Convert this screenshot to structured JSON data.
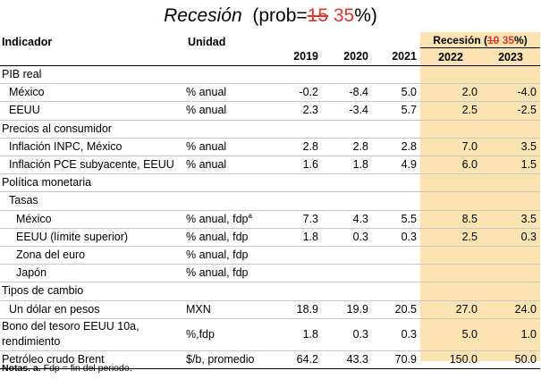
{
  "title": {
    "word": "Recesión",
    "prob_prefix": "(prob=",
    "old_value": "15",
    "new_value": "35",
    "suffix": "%)"
  },
  "header": {
    "indicador": "Indicador",
    "unidad": "Unidad",
    "scenario_prefix": "Recesión (",
    "scenario_old": "10",
    "scenario_new": "35",
    "scenario_suffix": "%)",
    "years": [
      "2019",
      "2020",
      "2021",
      "2022",
      "2023"
    ]
  },
  "rows": [
    {
      "label": "PIB real",
      "unit": "",
      "indent": 0,
      "values": [
        "",
        "",
        "",
        "",
        ""
      ]
    },
    {
      "label": "México",
      "unit": "% anual",
      "indent": 1,
      "values": [
        "-0.2",
        "-8.4",
        "5.0",
        "2.0",
        "-4.0"
      ]
    },
    {
      "label": "EEUU",
      "unit": "% anual",
      "indent": 1,
      "values": [
        "2.3",
        "-3.4",
        "5.7",
        "2.5",
        "-2.5"
      ]
    },
    {
      "label": "Precios al consumidor",
      "unit": "",
      "indent": 0,
      "values": [
        "",
        "",
        "",
        "",
        ""
      ]
    },
    {
      "label": "Inflación INPC, México",
      "unit": "% anual",
      "indent": 1,
      "values": [
        "2.8",
        "2.8",
        "2.8",
        "7.0",
        "3.5"
      ]
    },
    {
      "label": "Inflación PCE subyacente, EEUU",
      "unit": "% anual",
      "indent": 1,
      "values": [
        "1.6",
        "1.8",
        "4.9",
        "6.0",
        "1.5"
      ]
    },
    {
      "label": "Política monetaria",
      "unit": "",
      "indent": 0,
      "values": [
        "",
        "",
        "",
        "",
        ""
      ]
    },
    {
      "label": "Tasas",
      "unit": "",
      "indent": 1,
      "values": [
        "",
        "",
        "",
        "",
        ""
      ]
    },
    {
      "label": "México",
      "unit": "% anual, fdp",
      "unit_sup": "a",
      "indent": 2,
      "values": [
        "7.3",
        "4.3",
        "5.5",
        "8.5",
        "3.5"
      ]
    },
    {
      "label": "EEUU (límite superior)",
      "unit": "% anual, fdp",
      "indent": 2,
      "values": [
        "1.8",
        "0.3",
        "0.3",
        "2.5",
        "0.3"
      ]
    },
    {
      "label": "Zona del euro",
      "unit": "% anual, fdp",
      "indent": 2,
      "values": [
        "",
        "",
        "",
        "",
        ""
      ]
    },
    {
      "label": "Japón",
      "unit": "% anual, fdp",
      "indent": 2,
      "values": [
        "",
        "",
        "",
        "",
        ""
      ]
    },
    {
      "label": "Tipos de cambio",
      "unit": "",
      "indent": 0,
      "values": [
        "",
        "",
        "",
        "",
        ""
      ]
    },
    {
      "label": "Un dólar en pesos",
      "unit": "MXN",
      "indent": 1,
      "values": [
        "18.9",
        "19.9",
        "20.5",
        "27.0",
        "24.0"
      ]
    },
    {
      "label": "Bono del tesoro EEUU 10a,",
      "label2": "rendimiento",
      "unit": "%,fdp",
      "indent": 0,
      "values": [
        "1.8",
        "0.3",
        "0.3",
        "5.0",
        "1.0"
      ]
    },
    {
      "label": "Petróleo crudo Brent",
      "unit": "$/b, promedio",
      "indent": 0,
      "values": [
        "64.2",
        "43.3",
        "70.9",
        "150.0",
        "50.0"
      ]
    }
  ],
  "notes": {
    "bold": "Notas. a.",
    "text": " Fdp = fin del periodo."
  },
  "colors": {
    "highlight": "#fbe4b2",
    "strike": "#e0382f"
  }
}
